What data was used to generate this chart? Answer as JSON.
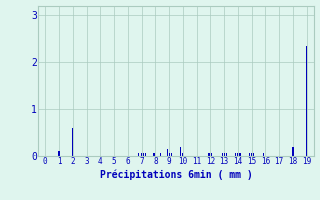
{
  "xlabel": "Précipitations 6min ( mm )",
  "bar_color": "#0000bb",
  "background_color": "#dff5ee",
  "grid_color": "#aacbbf",
  "text_color": "#0000bb",
  "ylim": [
    0,
    3.2
  ],
  "xlim": [
    -0.5,
    19.5
  ],
  "yticks": [
    0,
    1,
    2,
    3
  ],
  "xtick_labels": [
    "0",
    "1",
    "2",
    "3",
    "4",
    "5",
    "6",
    "7",
    "8",
    "9",
    "10",
    "11",
    "12",
    "13",
    "14",
    "15",
    "16",
    "17",
    "18",
    "19"
  ],
  "bars": [
    {
      "x": 1.0,
      "height": 0.1
    },
    {
      "x": 2.0,
      "height": 0.6
    },
    {
      "x": 6.8,
      "height": 0.07
    },
    {
      "x": 7.0,
      "height": 0.07
    },
    {
      "x": 7.15,
      "height": 0.07
    },
    {
      "x": 7.3,
      "height": 0.07
    },
    {
      "x": 7.9,
      "height": 0.07
    },
    {
      "x": 8.4,
      "height": 0.07
    },
    {
      "x": 8.85,
      "height": 0.15
    },
    {
      "x": 9.0,
      "height": 0.07
    },
    {
      "x": 9.15,
      "height": 0.07
    },
    {
      "x": 9.85,
      "height": 0.2
    },
    {
      "x": 10.0,
      "height": 0.07
    },
    {
      "x": 11.9,
      "height": 0.07
    },
    {
      "x": 12.05,
      "height": 0.07
    },
    {
      "x": 12.85,
      "height": 0.07
    },
    {
      "x": 13.0,
      "height": 0.07
    },
    {
      "x": 13.15,
      "height": 0.07
    },
    {
      "x": 13.85,
      "height": 0.07
    },
    {
      "x": 14.0,
      "height": 0.07
    },
    {
      "x": 14.15,
      "height": 0.07
    },
    {
      "x": 14.85,
      "height": 0.07
    },
    {
      "x": 15.0,
      "height": 0.07
    },
    {
      "x": 15.15,
      "height": 0.07
    },
    {
      "x": 15.85,
      "height": 0.07
    },
    {
      "x": 18.0,
      "height": 0.2
    },
    {
      "x": 19.0,
      "height": 2.35
    }
  ],
  "bar_width": 0.08,
  "figsize": [
    3.2,
    2.0
  ],
  "dpi": 100
}
